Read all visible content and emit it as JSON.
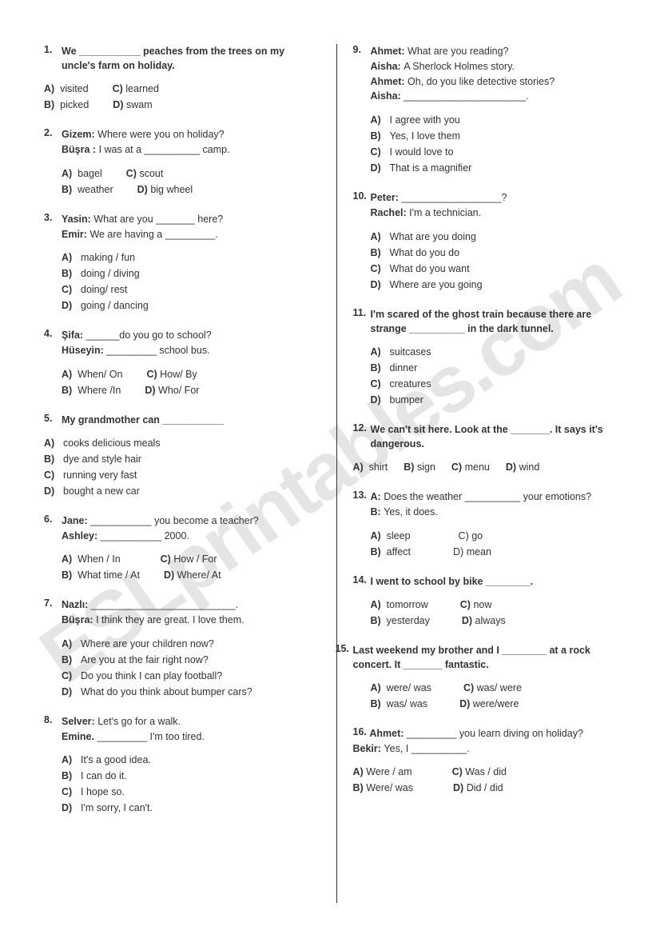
{
  "watermark": "ESLprintables.com",
  "left": {
    "q1": {
      "n": "1.",
      "stem": "We ___________ peaches from the trees on my uncle's farm on holiday.",
      "a": "visited",
      "b": "picked",
      "c": "learned",
      "d": "swam"
    },
    "q2": {
      "n": "2.",
      "s1a": "Gizem:",
      "s1b": "Where were you on holiday?",
      "s2a": "Büşra :",
      "s2b": "I was at a __________ camp.",
      "a": "bagel",
      "b": "weather",
      "c": "scout",
      "d": "big wheel"
    },
    "q3": {
      "n": "3.",
      "s1a": "Yasin:",
      "s1b": "What are you _______ here?",
      "s2a": "Emir:",
      "s2b": "We are having a _________.",
      "a": "making / fun",
      "b": "doing / diving",
      "c": "doing/ rest",
      "d": "going / dancing"
    },
    "q4": {
      "n": "4.",
      "s1a": "Şifa:",
      "s1b": "______do you go to school?",
      "s2a": "Hüseyin:",
      "s2b": "_________ school bus.",
      "a": "When/ On",
      "b": "Where /In",
      "c": "How/ By",
      "d": "Who/ For"
    },
    "q5": {
      "n": "5.",
      "stem": "My grandmother can ___________",
      "a": "cooks delicious meals",
      "b": "dye and style hair",
      "c": "running very fast",
      "d": "bought a new car"
    },
    "q6": {
      "n": "6.",
      "s1a": "Jane:",
      "s1b": "___________ you become a teacher?",
      "s2a": "Ashley:",
      "s2b": "___________ 2000.",
      "a": "When / In",
      "b": "What time / At",
      "c": "How / For",
      "d": "Where/ At"
    },
    "q7": {
      "n": "7.",
      "s1a": "Nazlı:",
      "s1b": "__________________________.",
      "s2a": "Büşra:",
      "s2b": "I think they are great. I love them.",
      "a": "Where are your children now?",
      "b": "Are you at the fair right now?",
      "c": "Do you think I can play football?",
      "d": "What do you think about bumper cars?"
    },
    "q8": {
      "n": "8.",
      "s1a": "Selver:",
      "s1b": "Let's go for a walk.",
      "s2a": "Emine.",
      "s2b": "_________ I'm too tired.",
      "a": "It's a good idea.",
      "b": "I can do it.",
      "c": "I hope so.",
      "d": "I'm sorry, I can't."
    }
  },
  "right": {
    "q9": {
      "n": "9.",
      "s1a": "Ahmet:",
      "s1b": "What are you reading?",
      "s2a": "Aisha:",
      "s2b": "A Sherlock Holmes story.",
      "s3a": "Ahmet:",
      "s3b": "Oh, do you like detective stories?",
      "s4a": "Aisha:",
      "s4b": "______________________.",
      "a": "I agree with you",
      "b": "Yes, I love them",
      "c": "I would love to",
      "d": "That is a magnifier"
    },
    "q10": {
      "n": "10.",
      "s1a": "Peter:",
      "s1b": "__________________?",
      "s2a": "Rachel:",
      "s2b": "I'm a technician.",
      "a": "What are you doing",
      "b": "What do you do",
      "c": "What do you want",
      "d": "Where are you going"
    },
    "q11": {
      "n": "11.",
      "stem": "I'm scared of the ghost train because there are strange __________ in the dark tunnel.",
      "a": "suitcases",
      "b": "dinner",
      "c": "creatures",
      "d": "bumper"
    },
    "q12": {
      "n": "12.",
      "stem": "We can't sit here. Look at the _______. It says it's dangerous.",
      "a": "shirt",
      "b": "sign",
      "c": "menu",
      "d": "wind"
    },
    "q13": {
      "n": "13.",
      "s1a": "A:",
      "s1b": "Does the weather __________ your emotions?",
      "s2a": "B:",
      "s2b": "Yes, it does.",
      "a": "sleep",
      "b": "affect",
      "c": "go",
      "d": "mean"
    },
    "q14": {
      "n": "14.",
      "stem": "I went to school by bike ________.",
      "a": "tomorrow",
      "b": "yesterday",
      "c": "now",
      "d": "always"
    },
    "q15": {
      "n": "15.",
      "stem": "Last weekend my brother and I ________ at a rock concert. It _______ fantastic.",
      "a": "were/ was",
      "b": "was/ was",
      "c": "was/ were",
      "d": "were/were"
    },
    "q16": {
      "n": "16.",
      "s1a": "Ahmet:",
      "s1b": "_________ you learn diving on holiday?",
      "s2a": "Bekir:",
      "s2b": "Yes, I __________.",
      "a": "Were / am",
      "b": "Were/ was",
      "c": "Was / did",
      "d": "Did / did"
    }
  }
}
